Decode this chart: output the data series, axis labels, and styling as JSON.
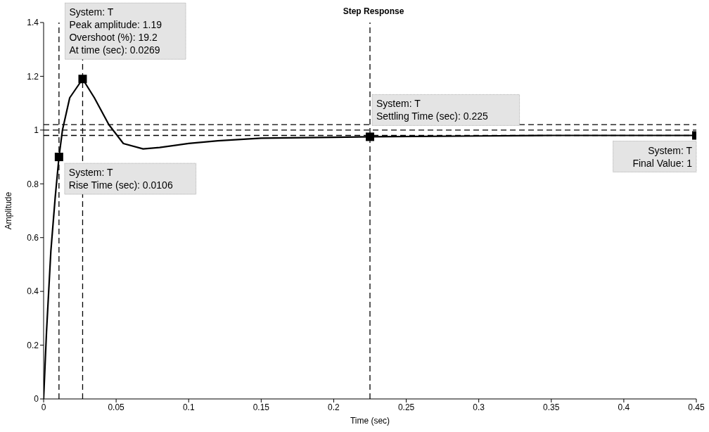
{
  "chart_data": {
    "type": "line",
    "title": "Step Response",
    "xlabel": "Time (sec)",
    "ylabel": "Amplitude",
    "xlim": [
      0,
      0.45
    ],
    "xticks": [
      0,
      0.05,
      0.1,
      0.15,
      0.2,
      0.25,
      0.3,
      0.35,
      0.4,
      0.45
    ],
    "ylim": [
      0,
      1.4
    ],
    "yticks": [
      0,
      0.2,
      0.4,
      0.6,
      0.8,
      1,
      1.2,
      1.4
    ],
    "grid": false,
    "legend": false,
    "line_style": "solid",
    "marker": "none",
    "series": [
      {
        "type": "line",
        "color": "#000000",
        "x": [
          0,
          0.002,
          0.005,
          0.008,
          0.0106,
          0.013,
          0.018,
          0.0269,
          0.035,
          0.045,
          0.055,
          0.0686,
          0.08,
          0.1,
          0.12,
          0.15,
          0.2,
          0.225,
          0.3,
          0.35,
          0.45
        ],
        "values": [
          0,
          0.25,
          0.55,
          0.75,
          0.9,
          1.0,
          1.12,
          1.19,
          1.12,
          1.02,
          0.95,
          0.93,
          0.935,
          0.95,
          0.96,
          0.97,
          0.973,
          0.975,
          0.978,
          0.98,
          0.98
        ]
      },
      {
        "type": "scatter",
        "marker": "square",
        "color": "#000000",
        "x": [
          0.0106,
          0.0269,
          0.225,
          0.45
        ],
        "values": [
          0.9,
          1.19,
          0.975,
          0.98
        ]
      }
    ],
    "ref_lines": [
      {
        "axis": "y",
        "value": 1,
        "line_style": "dashed",
        "color": "#000000"
      },
      {
        "axis": "y",
        "value": 1.02,
        "line_style": "dashed",
        "color": "#000000"
      },
      {
        "axis": "y",
        "value": 0.98,
        "line_style": "dashed",
        "color": "#000000"
      },
      {
        "axis": "x",
        "value": 0.0106,
        "line_style": "dashed",
        "color": "#000000"
      },
      {
        "axis": "x",
        "value": 0.0269,
        "line_style": "dashed",
        "color": "#000000"
      },
      {
        "axis": "x",
        "value": 0.225,
        "line_style": "dashed",
        "color": "#000000"
      }
    ],
    "annotations": [
      {
        "text": "System: T\nPeak amplitude: 1.19\nOvershoot (%): 19.2\nAt time (sec): 0.0269",
        "x": 0.0269,
        "y": 1.19
      },
      {
        "text": "System: T\nRise Time (sec): 0.0106",
        "x": 0.0106,
        "y": 0.9
      },
      {
        "text": "System: T\nSettling Time (sec): 0.225",
        "x": 0.225,
        "y": 0.975
      },
      {
        "text": "System: T\nFinal Value: 1",
        "x": 0.45,
        "y": 0.98
      }
    ]
  }
}
